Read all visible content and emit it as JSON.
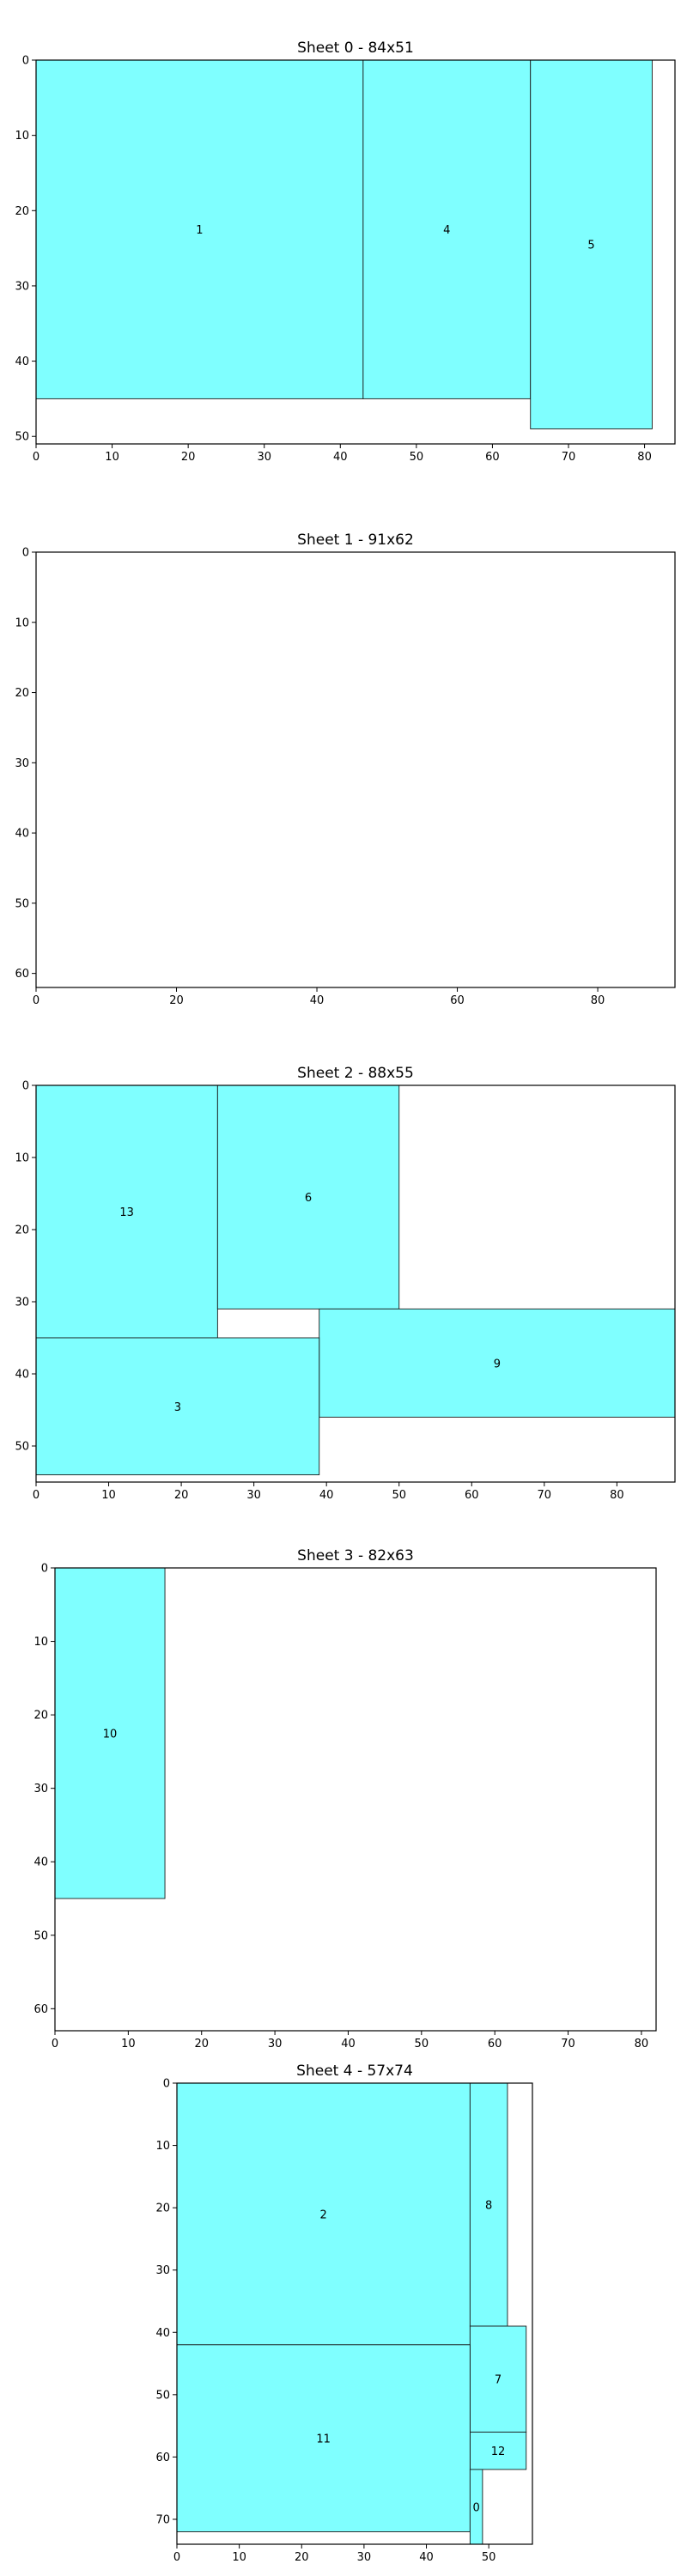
{
  "chart_data": [
    {
      "type": "rectangle-packing",
      "title": "Sheet 0 - 84x51",
      "xlim": [
        0,
        84
      ],
      "ylim": [
        0,
        51
      ],
      "xticks": [
        0,
        10,
        20,
        30,
        40,
        50,
        60,
        70,
        80
      ],
      "yticks": [
        0,
        10,
        20,
        30,
        40,
        50
      ],
      "pieces": [
        {
          "label": "1",
          "x": 0,
          "y": 0,
          "w": 43,
          "h": 45
        },
        {
          "label": "4",
          "x": 43,
          "y": 0,
          "w": 22,
          "h": 45
        },
        {
          "label": "5",
          "x": 65,
          "y": 0,
          "w": 16,
          "h": 49
        }
      ]
    },
    {
      "type": "rectangle-packing",
      "title": "Sheet 1 - 91x62",
      "xlim": [
        0,
        91
      ],
      "ylim": [
        0,
        62
      ],
      "xticks": [
        0,
        20,
        40,
        60,
        80
      ],
      "yticks": [
        0,
        10,
        20,
        30,
        40,
        50,
        60
      ],
      "pieces": []
    },
    {
      "type": "rectangle-packing",
      "title": "Sheet 2 - 88x55",
      "xlim": [
        0,
        88
      ],
      "ylim": [
        0,
        55
      ],
      "xticks": [
        0,
        10,
        20,
        30,
        40,
        50,
        60,
        70,
        80
      ],
      "yticks": [
        0,
        10,
        20,
        30,
        40,
        50
      ],
      "pieces": [
        {
          "label": "13",
          "x": 0,
          "y": 0,
          "w": 25,
          "h": 35
        },
        {
          "label": "6",
          "x": 25,
          "y": 0,
          "w": 25,
          "h": 31
        },
        {
          "label": "9",
          "x": 39,
          "y": 31,
          "w": 49,
          "h": 15
        },
        {
          "label": "3",
          "x": 0,
          "y": 35,
          "w": 39,
          "h": 19
        }
      ]
    },
    {
      "type": "rectangle-packing",
      "title": "Sheet 3 - 82x63",
      "xlim": [
        0,
        82
      ],
      "ylim": [
        0,
        63
      ],
      "xticks": [
        0,
        10,
        20,
        30,
        40,
        50,
        60,
        70,
        80
      ],
      "yticks": [
        0,
        10,
        20,
        30,
        40,
        50,
        60
      ],
      "pieces": [
        {
          "label": "10",
          "x": 0,
          "y": 0,
          "w": 15,
          "h": 45
        }
      ]
    },
    {
      "type": "rectangle-packing",
      "title": "Sheet 4 - 57x74",
      "xlim": [
        0,
        57
      ],
      "ylim": [
        0,
        74
      ],
      "xticks": [
        0,
        10,
        20,
        30,
        40,
        50
      ],
      "yticks": [
        0,
        10,
        20,
        30,
        40,
        50,
        60,
        70
      ],
      "pieces": [
        {
          "label": "2",
          "x": 0,
          "y": 0,
          "w": 47,
          "h": 42
        },
        {
          "label": "8",
          "x": 47,
          "y": 0,
          "w": 6,
          "h": 39
        },
        {
          "label": "7",
          "x": 47,
          "y": 39,
          "w": 9,
          "h": 17
        },
        {
          "label": "12",
          "x": 47,
          "y": 56,
          "w": 9,
          "h": 6
        },
        {
          "label": "11",
          "x": 0,
          "y": 42,
          "w": 47,
          "h": 30
        },
        {
          "label": "0",
          "x": 47,
          "y": 62,
          "w": 2,
          "h": 12
        }
      ]
    }
  ]
}
